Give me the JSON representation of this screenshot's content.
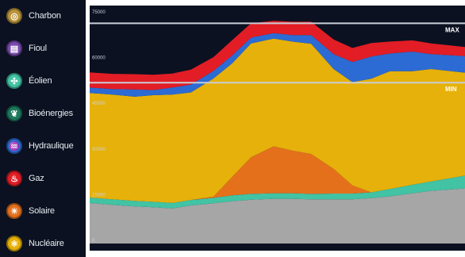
{
  "legend": {
    "items": [
      {
        "label": "Charbon",
        "color": "#b8933a",
        "icon": "coal-icon",
        "glyph": "◎"
      },
      {
        "label": "Fioul",
        "color": "#7a4ab0",
        "icon": "oil-barrel-icon",
        "glyph": "▤"
      },
      {
        "label": "Éolien",
        "color": "#41c3a4",
        "icon": "wind-turbine-icon",
        "glyph": "✣"
      },
      {
        "label": "Bioénergies",
        "color": "#1d7a5c",
        "icon": "leaf-icon",
        "glyph": "❦"
      },
      {
        "label": "Hydraulique",
        "color": "#2c6bd3",
        "icon": "water-drop-icon",
        "glyph": "♒"
      },
      {
        "label": "Gaz",
        "color": "#e21d25",
        "icon": "flame-icon",
        "glyph": "♨"
      },
      {
        "label": "Solaire",
        "color": "#e5701c",
        "icon": "sun-icon",
        "glyph": "☀"
      },
      {
        "label": "Nucléaire",
        "color": "#e6b10a",
        "icon": "atom-icon",
        "glyph": "⚛"
      }
    ]
  },
  "chart_data": {
    "type": "area",
    "stacked": true,
    "ylim": [
      0,
      75000
    ],
    "ytick_labels": [
      "0",
      "15000",
      "30000",
      "45000",
      "60000",
      "75000"
    ],
    "reference_lines": [
      {
        "label": "MAX",
        "value": 72300
      },
      {
        "label": "MIN",
        "value": 52800
      }
    ],
    "x": [
      0,
      6,
      12,
      17,
      22,
      27,
      33,
      38,
      43,
      49,
      54,
      59,
      65,
      70,
      75,
      80,
      86,
      91,
      100
    ],
    "series": [
      {
        "name": "Nucléaire",
        "color": "#a6a6a6",
        "values": [
          13300,
          12700,
          12200,
          11900,
          11500,
          12500,
          13200,
          13900,
          14400,
          14700,
          14700,
          14500,
          14500,
          14500,
          14900,
          15500,
          16500,
          17300,
          18100
        ]
      },
      {
        "name": "Éolien",
        "color": "#41c3a4",
        "values": [
          1800,
          1800,
          1800,
          1800,
          1800,
          1800,
          1800,
          1900,
          1900,
          1800,
          1800,
          1800,
          1900,
          1900,
          1900,
          2400,
          2800,
          3100,
          4200
        ]
      },
      {
        "name": "Solaire",
        "color": "#e5701c",
        "values": [
          0,
          0,
          0,
          0,
          0,
          0,
          400,
          6100,
          12000,
          15400,
          14000,
          13100,
          8100,
          2700,
          0,
          0,
          0,
          0,
          0
        ]
      },
      {
        "name": "Nucléaire",
        "color": "#e6b10a",
        "values": [
          34300,
          34400,
          34200,
          35000,
          35600,
          35300,
          38800,
          37300,
          37400,
          35400,
          35800,
          36200,
          32800,
          33900,
          37300,
          38700,
          37300,
          36900,
          33800
        ]
      },
      {
        "name": "Hydraulique",
        "color": "#2c6bd3",
        "values": [
          1800,
          1800,
          2400,
          1700,
          2300,
          2600,
          2500,
          2600,
          1900,
          1800,
          2100,
          2800,
          4900,
          6600,
          7300,
          5800,
          6400,
          4900,
          5400
        ]
      },
      {
        "name": "Gaz",
        "color": "#e21d25",
        "values": [
          5000,
          5000,
          5000,
          5000,
          4600,
          4900,
          4500,
          5000,
          4700,
          4000,
          4400,
          4400,
          4800,
          4600,
          4400,
          3900,
          3700,
          3500,
          3000
        ]
      }
    ]
  }
}
